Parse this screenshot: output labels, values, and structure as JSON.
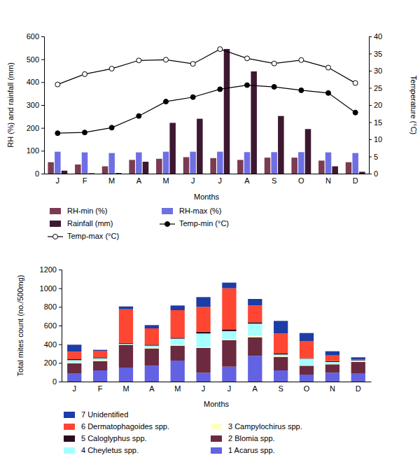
{
  "chart_data": [
    {
      "type": "bar",
      "x_label": "Months",
      "y_label": "RH (%) and rainfall (mm)",
      "y2_label": "Temperature (°C)",
      "categories": [
        "J",
        "F",
        "M",
        "A",
        "M",
        "J",
        "J",
        "A",
        "S",
        "O",
        "N",
        "D"
      ],
      "ylim": [
        0,
        600
      ],
      "yticks": [
        0,
        100,
        200,
        300,
        400,
        500,
        600
      ],
      "y2lim": [
        0,
        40
      ],
      "y2ticks": [
        0,
        5,
        10,
        15,
        20,
        25,
        30,
        35,
        40
      ],
      "grid": false,
      "legend": "bottom",
      "series": [
        {
          "name": "RH-min (%)",
          "type": "bar",
          "color": "#7b3b50",
          "values": [
            50,
            40,
            32,
            60,
            65,
            72,
            68,
            60,
            70,
            70,
            57,
            50
          ]
        },
        {
          "name": "RH-max (%)",
          "type": "bar",
          "color": "#6f6fe4",
          "values": [
            96,
            93,
            90,
            93,
            96,
            96,
            96,
            94,
            94,
            94,
            93,
            90
          ]
        },
        {
          "name": "Rainfall (mm)",
          "type": "bar",
          "color": "#3d1830",
          "values": [
            13,
            2,
            3,
            52,
            222,
            240,
            545,
            447,
            252,
            195,
            32,
            8
          ]
        },
        {
          "name": "Temp-min (°C)",
          "type": "line",
          "axis": "y2",
          "color": "#000000",
          "marker": "circle",
          "line_style": "solid",
          "values": [
            11.8,
            12,
            13.4,
            16.8,
            21,
            22.3,
            24.6,
            25.8,
            25.3,
            24.3,
            23.5,
            17.8
          ]
        },
        {
          "name": "Temp-max (°C)",
          "type": "line",
          "axis": "y2",
          "color": "#000000",
          "marker": "open-circle",
          "line_style": "solid",
          "values": [
            26,
            29,
            30.6,
            33,
            33.2,
            32,
            36.3,
            33.6,
            32.1,
            33.1,
            30.9,
            26.4
          ]
        }
      ]
    },
    {
      "type": "bar",
      "stacked": true,
      "x_label": "Months",
      "y_label": "Total mites count (no./500mg)",
      "categories": [
        "J",
        "F",
        "M",
        "A",
        "M",
        "J",
        "J",
        "A",
        "S",
        "O",
        "N",
        "D"
      ],
      "ylim": [
        0,
        1200
      ],
      "yticks": [
        0,
        200,
        400,
        600,
        800,
        1000,
        1200
      ],
      "grid": false,
      "legend": "bottom",
      "series": [
        {
          "name": "1 Acarus spp.",
          "color": "#6262e2",
          "values": [
            90,
            120,
            150,
            170,
            225,
            95,
            160,
            275,
            120,
            75,
            95,
            85
          ]
        },
        {
          "name": "2 Blomia spp.",
          "color": "#6b2a40",
          "values": [
            105,
            100,
            245,
            185,
            160,
            265,
            285,
            200,
            145,
            95,
            90,
            125
          ]
        },
        {
          "name": "3 Campylochirus spp.",
          "color": "#ffffc4",
          "values": [
            10,
            10,
            5,
            10,
            10,
            10,
            10,
            15,
            10,
            5,
            5,
            5
          ]
        },
        {
          "name": "4 Cheyletus spp.",
          "color": "#a6ffff",
          "values": [
            25,
            20,
            5,
            20,
            65,
            145,
            85,
            130,
            15,
            70,
            20,
            10
          ]
        },
        {
          "name": "5 Caloglyphus spp.",
          "color": "#2b0b22",
          "values": [
            10,
            10,
            10,
            10,
            10,
            20,
            20,
            15,
            10,
            5,
            10,
            5
          ]
        },
        {
          "name": "6 Dermatophagoides spp.",
          "color": "#ff4632",
          "values": [
            80,
            70,
            360,
            175,
            295,
            265,
            440,
            180,
            215,
            185,
            60,
            5
          ]
        },
        {
          "name": "7 Unidentified",
          "color": "#1c3ca6",
          "values": [
            75,
            10,
            30,
            35,
            50,
            105,
            60,
            70,
            135,
            85,
            45,
            25
          ]
        }
      ]
    }
  ]
}
